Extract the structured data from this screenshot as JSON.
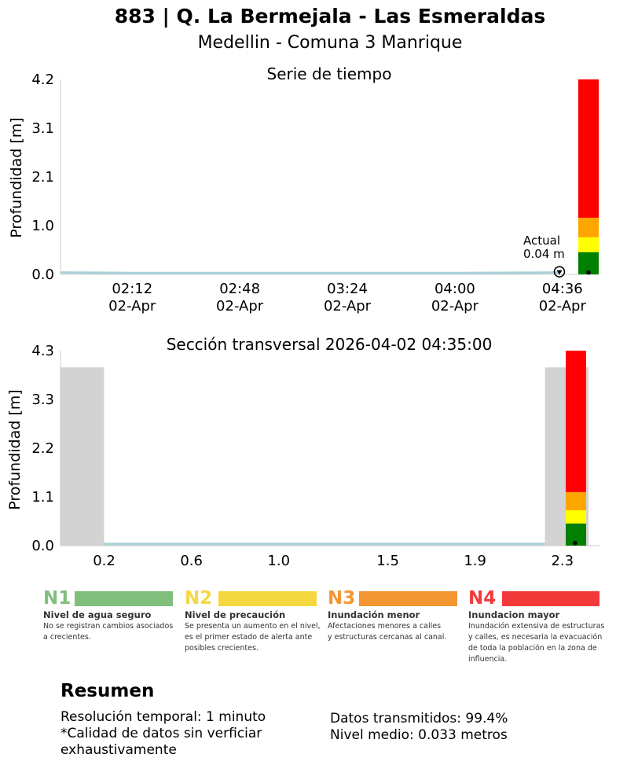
{
  "header": {
    "title": "883 | Q. La Bermejala - Las Esmeraldas",
    "subtitle": "Medellin - Comuna 3 Manrique"
  },
  "colors": {
    "series_line": "#a8d0d8",
    "ground": "#d3d3d3",
    "level_green": "#008000",
    "level_yellow": "#ffff00",
    "level_orange": "#ffa500",
    "level_red": "#ff0000",
    "n1": "#7fbf7b",
    "n2": "#f5d73f",
    "n3": "#f39632",
    "n4": "#f23a3a"
  },
  "chart_data": [
    {
      "type": "line",
      "title": "Serie de tiempo",
      "ylabel": "Profundidad [m]",
      "xlabel": "",
      "ylim": [
        0,
        4.2
      ],
      "yticks": [
        "0.0",
        "1.0",
        "2.1",
        "3.1",
        "4.2"
      ],
      "xlim": [
        "01:48",
        "04:40"
      ],
      "xticks": [
        {
          "time": "02:12",
          "date": "02-Apr"
        },
        {
          "time": "02:48",
          "date": "02-Apr"
        },
        {
          "time": "03:24",
          "date": "02-Apr"
        },
        {
          "time": "04:00",
          "date": "02-Apr"
        },
        {
          "time": "04:36",
          "date": "02-Apr"
        }
      ],
      "series": [
        {
          "x": [
            "01:48",
            "02:12",
            "02:48",
            "03:24",
            "04:00",
            "04:35"
          ],
          "y": [
            0.04,
            0.03,
            0.03,
            0.03,
            0.03,
            0.04
          ]
        }
      ],
      "current": {
        "time": "04:35",
        "value": 0.04,
        "label_line1": "Actual",
        "label_line2": "0.04 m"
      },
      "level_bands": [
        {
          "from": 0.0,
          "to": 0.48,
          "color": "green"
        },
        {
          "from": 0.48,
          "to": 0.8,
          "color": "yellow"
        },
        {
          "from": 0.8,
          "to": 1.22,
          "color": "orange"
        },
        {
          "from": 1.22,
          "to": 4.2,
          "color": "red"
        }
      ],
      "level_marker": 0.04
    },
    {
      "type": "area",
      "title": "Sección transversal 2026-04-02 04:35:00",
      "ylabel": "Profundidad [m]",
      "xlabel": "",
      "ylim": [
        0,
        4.3
      ],
      "xlim": [
        0,
        2.47
      ],
      "yticks": [
        "0.0",
        "1.1",
        "2.2",
        "3.3",
        "4.3"
      ],
      "xticks": [
        "0.2",
        "0.6",
        "1.0",
        "1.5",
        "1.9",
        "2.3"
      ],
      "xtick_values": [
        0.2,
        0.6,
        1.0,
        1.5,
        1.9,
        2.3
      ],
      "ground_profile": [
        {
          "x": 0.0,
          "y": 3.93
        },
        {
          "x": 0.2,
          "y": 3.93
        },
        {
          "x": 0.2,
          "y": 0.02
        },
        {
          "x": 2.22,
          "y": 0.02
        },
        {
          "x": 2.22,
          "y": 3.93
        },
        {
          "x": 2.42,
          "y": 3.93
        }
      ],
      "water_level": 0.04,
      "level_bands": [
        {
          "from": 0.0,
          "to": 0.49,
          "color": "green"
        },
        {
          "from": 0.49,
          "to": 0.78,
          "color": "yellow"
        },
        {
          "from": 0.78,
          "to": 1.18,
          "color": "orange"
        },
        {
          "from": 1.18,
          "to": 4.3,
          "color": "red"
        }
      ],
      "level_marker": 0.04
    }
  ],
  "legend_levels": [
    {
      "tag": "N1",
      "name": "Nivel de agua seguro",
      "desc": [
        "No se registran cambios asociados",
        "a crecientes."
      ]
    },
    {
      "tag": "N2",
      "name": "Nivel de precaución",
      "desc": [
        "Se presenta un aumento en el nivel,",
        "es el primer estado de alerta ante",
        "posibles crecientes."
      ]
    },
    {
      "tag": "N3",
      "name": "Inundación menor",
      "desc": [
        "Afectaciones menores a calles",
        "y estructuras cercanas al canal."
      ]
    },
    {
      "tag": "N4",
      "name": "Inundacion mayor",
      "desc": [
        "Inundación extensiva de estructuras",
        "y calles, es necesaria la evacuación",
        "de toda la población en la zona de",
        "influencia."
      ]
    }
  ],
  "summary": {
    "title": "Resumen",
    "resolution": "Resolución temporal: 1 minuto",
    "quality_line1": "*Calidad de datos sin verficiar",
    "quality_line2": "exhaustivamente",
    "transmitted": "Datos transmitidos: 99.4%",
    "mean_level": "Nivel medio: 0.033 metros"
  }
}
